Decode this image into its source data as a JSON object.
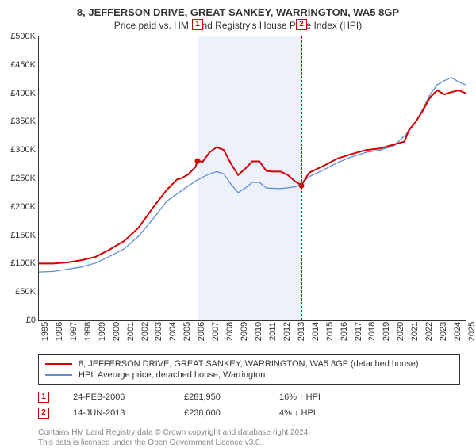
{
  "title": "8, JEFFERSON DRIVE, GREAT SANKEY, WARRINGTON, WA5 8GP",
  "subtitle": "Price paid vs. HM Land Registry's House Price Index (HPI)",
  "chart": {
    "type": "line",
    "ylim": [
      0,
      500000
    ],
    "ytick_step": 50000,
    "yticks": [
      "£0",
      "£50K",
      "£100K",
      "£150K",
      "£200K",
      "£250K",
      "£300K",
      "£350K",
      "£400K",
      "£450K",
      "£500K"
    ],
    "xlim": [
      1995,
      2025
    ],
    "xticks": [
      "1995",
      "1996",
      "1997",
      "1998",
      "1999",
      "2000",
      "2001",
      "2002",
      "2003",
      "2004",
      "2005",
      "2006",
      "2007",
      "2008",
      "2009",
      "2010",
      "2011",
      "2012",
      "2013",
      "2014",
      "2015",
      "2016",
      "2017",
      "2018",
      "2019",
      "2020",
      "2021",
      "2022",
      "2023",
      "2024",
      "2025"
    ],
    "background_color": "#ffffff",
    "band_color": "#ecf1fb",
    "band_start": 2006.15,
    "band_end": 2013.45,
    "series": [
      {
        "name": "property",
        "label": "8, JEFFERSON DRIVE, GREAT SANKEY, WARRINGTON, WA5 8GP (detached house)",
        "color": "#d40000",
        "width": 2,
        "points": [
          [
            1995.0,
            100000
          ],
          [
            1996.0,
            100000
          ],
          [
            1997.0,
            102000
          ],
          [
            1998.0,
            106000
          ],
          [
            1999.0,
            112000
          ],
          [
            2000.0,
            125000
          ],
          [
            2001.0,
            140000
          ],
          [
            2002.0,
            163000
          ],
          [
            2003.0,
            198000
          ],
          [
            2004.0,
            230000
          ],
          [
            2004.7,
            248000
          ],
          [
            2005.0,
            250000
          ],
          [
            2005.5,
            257000
          ],
          [
            2006.0,
            270000
          ],
          [
            2006.15,
            281000
          ],
          [
            2006.5,
            279000
          ],
          [
            2007.0,
            296000
          ],
          [
            2007.5,
            305000
          ],
          [
            2008.0,
            300000
          ],
          [
            2008.5,
            276000
          ],
          [
            2009.0,
            256000
          ],
          [
            2009.5,
            267000
          ],
          [
            2010.0,
            280000
          ],
          [
            2010.5,
            280000
          ],
          [
            2011.0,
            263000
          ],
          [
            2011.5,
            262000
          ],
          [
            2012.0,
            262000
          ],
          [
            2012.5,
            256000
          ],
          [
            2013.0,
            245000
          ],
          [
            2013.45,
            238000
          ],
          [
            2014.0,
            260000
          ],
          [
            2015.0,
            272000
          ],
          [
            2016.0,
            285000
          ],
          [
            2017.0,
            293000
          ],
          [
            2018.0,
            300000
          ],
          [
            2019.0,
            303000
          ],
          [
            2020.0,
            310000
          ],
          [
            2020.7,
            315000
          ],
          [
            2021.0,
            335000
          ],
          [
            2021.5,
            350000
          ],
          [
            2022.0,
            370000
          ],
          [
            2022.5,
            393000
          ],
          [
            2023.0,
            405000
          ],
          [
            2023.5,
            398000
          ],
          [
            2024.0,
            402000
          ],
          [
            2024.5,
            405000
          ],
          [
            2025.0,
            400000
          ]
        ]
      },
      {
        "name": "hpi",
        "label": "HPI: Average price, detached house, Warrington",
        "color": "#5b8fd6",
        "width": 1.3,
        "points": [
          [
            1995.0,
            85000
          ],
          [
            1996.0,
            86000
          ],
          [
            1997.0,
            90000
          ],
          [
            1998.0,
            94000
          ],
          [
            1999.0,
            101000
          ],
          [
            2000.0,
            113000
          ],
          [
            2001.0,
            126000
          ],
          [
            2002.0,
            148000
          ],
          [
            2003.0,
            178000
          ],
          [
            2004.0,
            210000
          ],
          [
            2005.0,
            228000
          ],
          [
            2006.0,
            245000
          ],
          [
            2006.5,
            252000
          ],
          [
            2007.0,
            258000
          ],
          [
            2007.5,
            262000
          ],
          [
            2008.0,
            258000
          ],
          [
            2008.5,
            240000
          ],
          [
            2009.0,
            225000
          ],
          [
            2009.5,
            233000
          ],
          [
            2010.0,
            243000
          ],
          [
            2010.5,
            243000
          ],
          [
            2011.0,
            233000
          ],
          [
            2012.0,
            232000
          ],
          [
            2013.0,
            235000
          ],
          [
            2013.45,
            240000
          ],
          [
            2014.0,
            253000
          ],
          [
            2015.0,
            265000
          ],
          [
            2016.0,
            278000
          ],
          [
            2017.0,
            288000
          ],
          [
            2018.0,
            296000
          ],
          [
            2019.0,
            300000
          ],
          [
            2020.0,
            308000
          ],
          [
            2021.0,
            333000
          ],
          [
            2021.5,
            350000
          ],
          [
            2022.0,
            373000
          ],
          [
            2022.5,
            398000
          ],
          [
            2023.0,
            415000
          ],
          [
            2023.5,
            422000
          ],
          [
            2024.0,
            428000
          ],
          [
            2024.5,
            420000
          ],
          [
            2025.0,
            415000
          ]
        ]
      }
    ],
    "markers": [
      {
        "id": "1",
        "x": 2006.15,
        "y": 281000,
        "color": "#d40000"
      },
      {
        "id": "2",
        "x": 2013.45,
        "y": 238000,
        "color": "#d40000"
      }
    ]
  },
  "sales": [
    {
      "id": "1",
      "date": "24-FEB-2006",
      "price": "£281,950",
      "delta": "16% ↑ HPI",
      "color": "#d40000"
    },
    {
      "id": "2",
      "date": "14-JUN-2013",
      "price": "£238,000",
      "delta": "4% ↓ HPI",
      "color": "#d40000"
    }
  ],
  "footer": {
    "line1": "Contains HM Land Registry data © Crown copyright and database right 2024.",
    "line2": "This data is licensed under the Open Government Licence v3.0."
  }
}
